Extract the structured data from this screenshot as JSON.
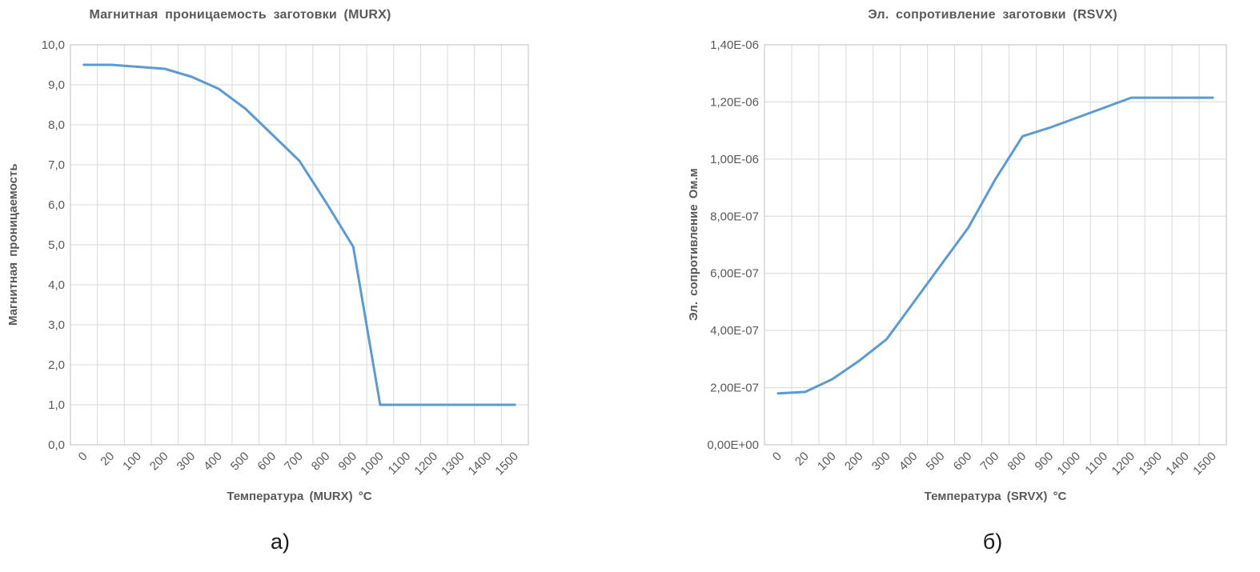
{
  "style": {
    "background": "#ffffff",
    "grid_color": "#D9D9D9",
    "axis_color": "#BFBFBF",
    "tick_color": "#595959",
    "title_color": "#595959",
    "accent_line_color": "#5B9BD5"
  },
  "chart_data": [
    {
      "type": "line",
      "title": "Магнитная проницаемость заготовки (MURX)",
      "xlabel": "Температура (MURX) °C",
      "ylabel": "Магнитная проницаемость",
      "caption": "а)",
      "legend": "none",
      "grid": true,
      "line_color": "#5B9BD5",
      "categories": [
        "0",
        "20",
        "100",
        "200",
        "300",
        "400",
        "500",
        "600",
        "700",
        "800",
        "900",
        "1000",
        "1100",
        "1200",
        "1300",
        "1400",
        "1500"
      ],
      "values": [
        9.5,
        9.5,
        9.45,
        9.4,
        9.2,
        8.9,
        8.4,
        7.75,
        7.1,
        6.05,
        4.95,
        1.0,
        1.0,
        1.0,
        1.0,
        1.0,
        1.0
      ],
      "ylim": [
        0,
        10
      ],
      "y_ticks": [
        {
          "value": 0,
          "label": "0,0"
        },
        {
          "value": 1,
          "label": "1,0"
        },
        {
          "value": 2,
          "label": "2,0"
        },
        {
          "value": 3,
          "label": "3,0"
        },
        {
          "value": 4,
          "label": "4,0"
        },
        {
          "value": 5,
          "label": "5,0"
        },
        {
          "value": 6,
          "label": "6,0"
        },
        {
          "value": 7,
          "label": "7,0"
        },
        {
          "value": 8,
          "label": "8,0"
        },
        {
          "value": 9,
          "label": "9,0"
        },
        {
          "value": 10,
          "label": "10,0"
        }
      ]
    },
    {
      "type": "line",
      "title": "Эл. сопротивление заготовки (RSVX)",
      "xlabel": "Температура (SRVX) °C",
      "ylabel": "Эл. сопротивление Ом.м",
      "caption": "б)",
      "legend": "none",
      "grid": true,
      "line_color": "#5B9BD5",
      "categories": [
        "0",
        "20",
        "100",
        "200",
        "300",
        "400",
        "500",
        "600",
        "700",
        "800",
        "900",
        "1000",
        "1100",
        "1200",
        "1300",
        "1400",
        "1500"
      ],
      "values": [
        1.8e-07,
        1.85e-07,
        2.3e-07,
        2.95e-07,
        3.7e-07,
        5e-07,
        6.3e-07,
        7.6e-07,
        9.3e-07,
        1.08e-06,
        1.11e-06,
        1.145e-06,
        1.18e-06,
        1.215e-06,
        1.215e-06,
        1.215e-06,
        1.215e-06
      ],
      "ylim": [
        0,
        1.4e-06
      ],
      "y_ticks": [
        {
          "value": 0,
          "label": "0,00E+00"
        },
        {
          "value": 2e-07,
          "label": "2,00E-07"
        },
        {
          "value": 4e-07,
          "label": "4,00E-07"
        },
        {
          "value": 6e-07,
          "label": "6,00E-07"
        },
        {
          "value": 8e-07,
          "label": "8,00E-07"
        },
        {
          "value": 1e-06,
          "label": "1,00E-06"
        },
        {
          "value": 1.2e-06,
          "label": "1,20E-06"
        },
        {
          "value": 1.4e-06,
          "label": "1,40E-06"
        }
      ]
    }
  ]
}
